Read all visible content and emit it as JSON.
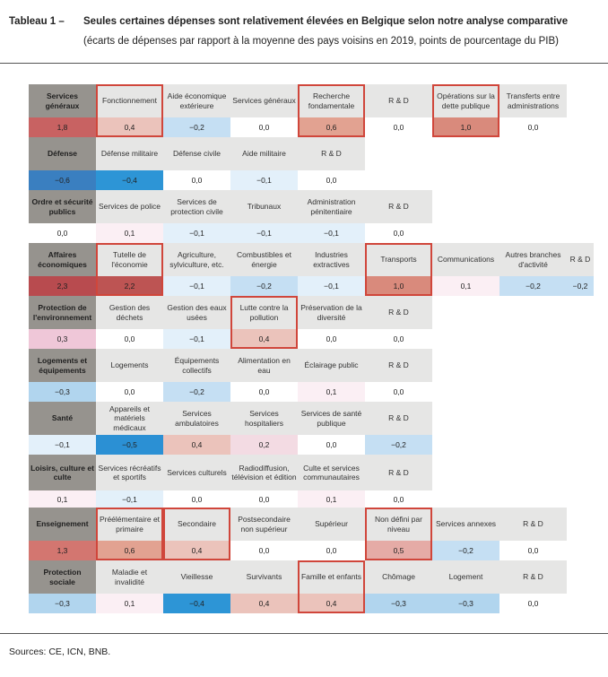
{
  "header": {
    "table_number": "Tableau 1 –",
    "title": "Seules certaines dépenses sont relativement élevées en Belgique selon notre analyse comparative",
    "subtitle": "(écarts de dépenses par rapport à la moyenne des pays voisins en 2019, points de pourcentage du PIB)"
  },
  "footer": {
    "sources": "Sources: CE, ICN, BNB."
  },
  "colors": {
    "highlight_border": "#d0463b",
    "header_bg": "#96938e",
    "label_bg": "#e6e6e5",
    "scale": {
      "2,3": "#b84b4f",
      "2,2": "#bd5453",
      "1,8": "#c86262",
      "1,3": "#d37670",
      "1,0": "#d98a7c",
      "0,6": "#e2a291",
      "0,5": "#e5aba6",
      "0,4": "#ebc3bb",
      "0,3": "#efc7d8",
      "0,2": "#f3dbe3",
      "0,1": "#fbeff4",
      "0,0": "#ffffff",
      "−0,1": "#e3f0fa",
      "−0,2": "#c5dff3",
      "−0,3": "#b1d5ee",
      "−0,4": "#2d95d6",
      "−0,5": "#2b90d4",
      "−0,6": "#3a7fc0"
    }
  },
  "groups": [
    {
      "label": "Services généraux",
      "value": "1,8",
      "items": [
        {
          "label": "Fonctionnement",
          "value": "0,4",
          "hl": true
        },
        {
          "label": "Aide économique extérieure",
          "value": "−0,2"
        },
        {
          "label": "Services généraux",
          "value": "0,0"
        },
        {
          "label": "Recherche fondamentale",
          "value": "0,6",
          "hl": true
        },
        {
          "label": "R & D",
          "value": "0,0"
        },
        {
          "label": "Opérations sur la dette publique",
          "value": "1,0",
          "hl": true
        },
        {
          "label": "Transferts entre administrations",
          "value": "0,0"
        }
      ]
    },
    {
      "label": "Défense",
      "value": "−0,6",
      "items": [
        {
          "label": "Défense militaire",
          "value": "−0,4"
        },
        {
          "label": "Défense civile",
          "value": "0,0"
        },
        {
          "label": "Aide militaire",
          "value": "−0,1"
        },
        {
          "label": "R & D",
          "value": "0,0"
        }
      ]
    },
    {
      "label": "Ordre et sécurité publics",
      "value": "0,0",
      "items": [
        {
          "label": "Services de police",
          "value": "0,1"
        },
        {
          "label": "Services de protection civile",
          "value": "−0,1"
        },
        {
          "label": "Tribunaux",
          "value": "−0,1"
        },
        {
          "label": "Administration pénitentiaire",
          "value": "−0,1"
        },
        {
          "label": "R & D",
          "value": "0,0"
        }
      ]
    },
    {
      "label": "Affaires économiques",
      "value": "2,3",
      "items": [
        {
          "label": "Tutelle de l'économie",
          "value": "2,2",
          "hl": true
        },
        {
          "label": "Agriculture, sylviculture, etc.",
          "value": "−0,1"
        },
        {
          "label": "Combustibles et énergie",
          "value": "−0,2"
        },
        {
          "label": "Industries extractives",
          "value": "−0,1"
        },
        {
          "label": "Transports",
          "value": "1,0",
          "hl": true
        },
        {
          "label": "Communications",
          "value": "0,1"
        },
        {
          "label": "Autres branches d'activité",
          "value": "−0,2"
        },
        {
          "label": "R & D",
          "value": "−0,2",
          "narrow": true
        }
      ]
    },
    {
      "label": "Protection de l'environnement",
      "value": "0,3",
      "items": [
        {
          "label": "Gestion des déchets",
          "value": "0,0"
        },
        {
          "label": "Gestion des eaux usées",
          "value": "−0,1"
        },
        {
          "label": "Lutte contre la pollution",
          "value": "0,4",
          "hl": true
        },
        {
          "label": "Préservation de la diversité",
          "value": "0,0"
        },
        {
          "label": "R & D",
          "value": "0,0"
        }
      ]
    },
    {
      "label": "Logements et équipements",
      "value": "−0,3",
      "items": [
        {
          "label": "Logements",
          "value": "0,0"
        },
        {
          "label": "Équipements collectifs",
          "value": "−0,2"
        },
        {
          "label": "Alimentation en eau",
          "value": "0,0"
        },
        {
          "label": "Éclairage public",
          "value": "0,1"
        },
        {
          "label": "R & D",
          "value": "0,0"
        }
      ]
    },
    {
      "label": "Santé",
      "value": "−0,1",
      "items": [
        {
          "label": "Appareils et matériels médicaux",
          "value": "−0,5"
        },
        {
          "label": "Services ambulatoires",
          "value": "0,4"
        },
        {
          "label": "Services hospitaliers",
          "value": "0,2"
        },
        {
          "label": "Services de santé publique",
          "value": "0,0"
        },
        {
          "label": "R & D",
          "value": "−0,2"
        }
      ]
    },
    {
      "label": "Loisirs, culture et culte",
      "value": "0,1",
      "tall": true,
      "items": [
        {
          "label": "Services récréatifs et sportifs",
          "value": "−0,1"
        },
        {
          "label": "Services culturels",
          "value": "0,0"
        },
        {
          "label": "Radiodiffusion, télévision et édition",
          "value": "0,0"
        },
        {
          "label": "Culte et services communautaires",
          "value": "0,1"
        },
        {
          "label": "R & D",
          "value": "0,0"
        }
      ]
    },
    {
      "label": "Enseignement",
      "value": "1,3",
      "items": [
        {
          "label": "Préélémentaire et primaire",
          "value": "0,6",
          "hl": true
        },
        {
          "label": "Secondaire",
          "value": "0,4",
          "hl": true
        },
        {
          "label": "Postsecondaire non supérieur",
          "value": "0,0"
        },
        {
          "label": "Supérieur",
          "value": "0,0"
        },
        {
          "label": "Non défini par niveau",
          "value": "0,5",
          "hl": true
        },
        {
          "label": "Services annexes",
          "value": "−0,2"
        },
        {
          "label": "R & D",
          "value": "0,0"
        }
      ]
    },
    {
      "label": "Protection sociale",
      "value": "−0,3",
      "items": [
        {
          "label": "Maladie et invalidité",
          "value": "0,1"
        },
        {
          "label": "Vieillesse",
          "value": "−0,4"
        },
        {
          "label": "Survivants",
          "value": "0,4"
        },
        {
          "label": "Famille et enfants",
          "value": "0,4",
          "hl": true
        },
        {
          "label": "Chômage",
          "value": "−0,3"
        },
        {
          "label": "Logement",
          "value": "−0,3"
        },
        {
          "label": "R & D",
          "value": "0,0"
        }
      ]
    }
  ]
}
